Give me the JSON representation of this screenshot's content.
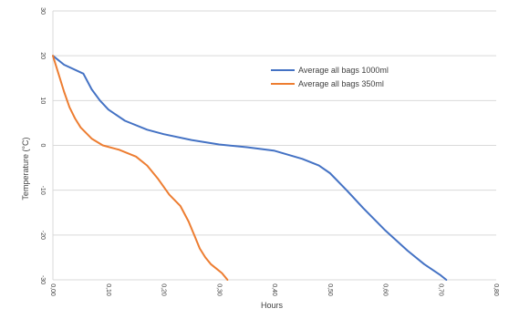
{
  "chart_data": {
    "type": "line",
    "title": "",
    "xlabel": "Hours",
    "ylabel": "Temperature (°C)",
    "xlim": [
      0,
      0.8
    ],
    "ylim": [
      -30,
      30
    ],
    "x_ticks": [
      0,
      0.1,
      0.2,
      0.3,
      0.4,
      0.5,
      0.6,
      0.7,
      0.8
    ],
    "x_tick_labels": [
      "0,00",
      "0,10",
      "0,20",
      "0,30",
      "0,40",
      "0,50",
      "0,60",
      "0,70",
      "0,80"
    ],
    "y_ticks": [
      30,
      20,
      10,
      0,
      -10,
      -20,
      -30
    ],
    "y_tick_labels": [
      "30",
      "20",
      "10",
      "0",
      "-10",
      "-20",
      "-30"
    ],
    "grid": true,
    "legend_position": "top-right",
    "series": [
      {
        "name": "Average all bags 1000ml",
        "color": "#4472c4",
        "x": [
          0,
          0.02,
          0.055,
          0.07,
          0.085,
          0.1,
          0.13,
          0.17,
          0.2,
          0.25,
          0.3,
          0.35,
          0.4,
          0.45,
          0.48,
          0.5,
          0.53,
          0.56,
          0.6,
          0.64,
          0.67,
          0.7,
          0.71
        ],
        "y": [
          20,
          18,
          16,
          12.5,
          10,
          8,
          5.5,
          3.5,
          2.5,
          1.2,
          0.2,
          -0.4,
          -1.2,
          -3,
          -4.5,
          -6.2,
          -10,
          -14,
          -19,
          -23.5,
          -26.5,
          -29,
          -30
        ]
      },
      {
        "name": "Average all bags 350ml",
        "color": "#ed7d31",
        "x": [
          0,
          0.01,
          0.02,
          0.03,
          0.04,
          0.05,
          0.07,
          0.09,
          0.12,
          0.15,
          0.17,
          0.19,
          0.21,
          0.23,
          0.245,
          0.255,
          0.265,
          0.275,
          0.285,
          0.295,
          0.305,
          0.315
        ],
        "y": [
          20,
          16,
          12,
          8.5,
          6,
          4,
          1.5,
          0,
          -1,
          -2.5,
          -4.5,
          -7.5,
          -11,
          -13.5,
          -17,
          -20,
          -23,
          -25,
          -26.5,
          -27.5,
          -28.5,
          -30
        ]
      }
    ]
  }
}
